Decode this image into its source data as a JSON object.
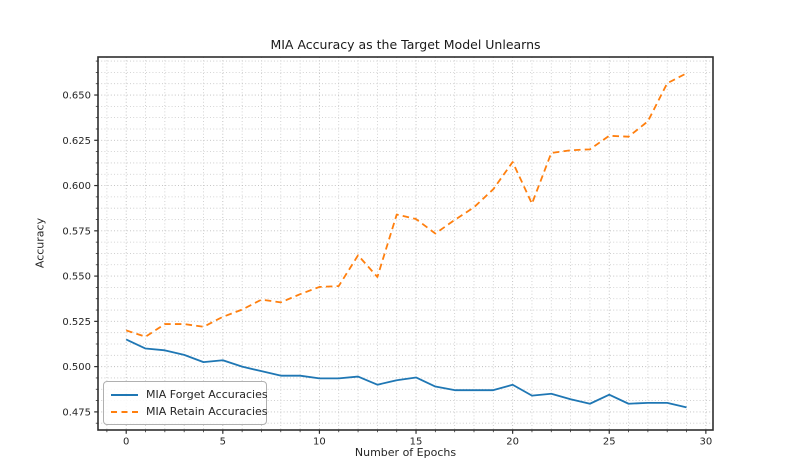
{
  "chart_data": {
    "type": "line",
    "title": "MIA Accuracy as the Target Model Unlearns",
    "xlabel": "Number of Epochs",
    "ylabel": "Accuracy",
    "x": [
      0,
      1,
      2,
      3,
      4,
      5,
      6,
      7,
      8,
      9,
      10,
      11,
      12,
      13,
      14,
      15,
      16,
      17,
      18,
      19,
      20,
      21,
      22,
      23,
      24,
      25,
      26,
      27,
      28,
      29
    ],
    "series": [
      {
        "name": "MIA Forget Accuracies",
        "color": "#1f77b4",
        "style": "solid",
        "values": [
          0.515,
          0.51,
          0.509,
          0.5065,
          0.5025,
          0.5035,
          0.5,
          0.4975,
          0.495,
          0.495,
          0.4935,
          0.4935,
          0.4945,
          0.49,
          0.4925,
          0.494,
          0.489,
          0.487,
          0.487,
          0.487,
          0.49,
          0.484,
          0.485,
          0.482,
          0.4795,
          0.4845,
          0.4795,
          0.48,
          0.48,
          0.4775
        ]
      },
      {
        "name": "MIA Retain Accuracies",
        "color": "#ff7f0e",
        "style": "dashed",
        "values": [
          0.52,
          0.5165,
          0.5235,
          0.5235,
          0.522,
          0.5275,
          0.5315,
          0.537,
          0.5355,
          0.54,
          0.544,
          0.5445,
          0.5615,
          0.5495,
          0.584,
          0.5815,
          0.5735,
          0.581,
          0.588,
          0.598,
          0.613,
          0.59,
          0.618,
          0.6195,
          0.62,
          0.6275,
          0.627,
          0.6355,
          0.6565,
          0.662
        ]
      }
    ],
    "xlim": [
      -1.46,
      30.37
    ],
    "ylim": [
      0.465,
      0.671
    ],
    "x_ticks": [
      0,
      5,
      10,
      15,
      20,
      25,
      30
    ],
    "y_ticks": [
      0.475,
      0.5,
      0.525,
      0.55,
      0.575,
      0.6,
      0.625,
      0.65
    ],
    "minor_x_step": 1,
    "minor_y_step": 0.00625,
    "grid": true,
    "legend_position": "lower-left",
    "colors": {
      "forget_line": "#1f77b4",
      "retain_line": "#ff7f0e",
      "grid": "#c7c7c7",
      "spine": "#2e2e2e",
      "text": "#262626",
      "background": "#ffffff"
    }
  },
  "legend": {
    "items": [
      {
        "label": "MIA Forget Accuracies"
      },
      {
        "label": "MIA Retain Accuracies"
      }
    ]
  }
}
